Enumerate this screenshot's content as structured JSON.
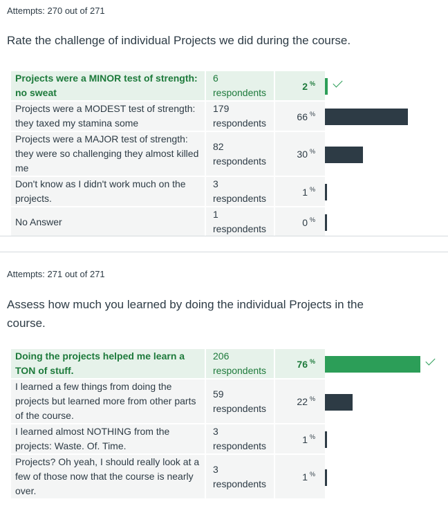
{
  "questions": [
    {
      "attempts": "Attempts: 270 out of 271",
      "text": "Rate the challenge of individual Projects we did during the course.",
      "answers": [
        {
          "label": "Projects were a MINOR test of strength: no sweat",
          "respondents": "6 respondents",
          "percent": "2",
          "sign": "%",
          "value": 2,
          "correct": true
        },
        {
          "label": "Projects were a MODEST test of strength: they taxed my stamina some",
          "respondents": "179 respondents",
          "percent": "66",
          "sign": "%",
          "value": 66,
          "correct": false
        },
        {
          "label": "Projects were a MAJOR test of strength: they were so challenging they almost killed me",
          "respondents": "82 respondents",
          "percent": "30",
          "sign": "%",
          "value": 30,
          "correct": false
        },
        {
          "label": "Don't know as I didn't work much on the projects.",
          "respondents": "3 respondents",
          "percent": "1",
          "sign": "%",
          "value": 1,
          "correct": false
        },
        {
          "label": "No Answer",
          "respondents": "1 respondents",
          "percent": "0",
          "sign": "%",
          "value": 0,
          "correct": false
        }
      ]
    },
    {
      "attempts": "Attempts: 271 out of 271",
      "text": "Assess how much you learned by doing the individual Projects in the course.",
      "answers": [
        {
          "label": "Doing the projects helped me learn a TON of stuff.",
          "respondents": "206 respondents",
          "percent": "76",
          "sign": "%",
          "value": 76,
          "correct": true
        },
        {
          "label": "I learned a few things from doing the projects but learned more from other parts of the course.",
          "respondents": "59 respondents",
          "percent": "22",
          "sign": "%",
          "value": 22,
          "correct": false
        },
        {
          "label": "I learned almost NOTHING from the projects: Waste. Of. Time.",
          "respondents": "3 respondents",
          "percent": "1",
          "sign": "%",
          "value": 1,
          "correct": false
        },
        {
          "label": "Projects? Oh yeah, I should really look at a few of those now that the course is nearly over.",
          "respondents": "3 respondents",
          "percent": "1",
          "sign": "%",
          "value": 1,
          "correct": false
        }
      ]
    }
  ]
}
